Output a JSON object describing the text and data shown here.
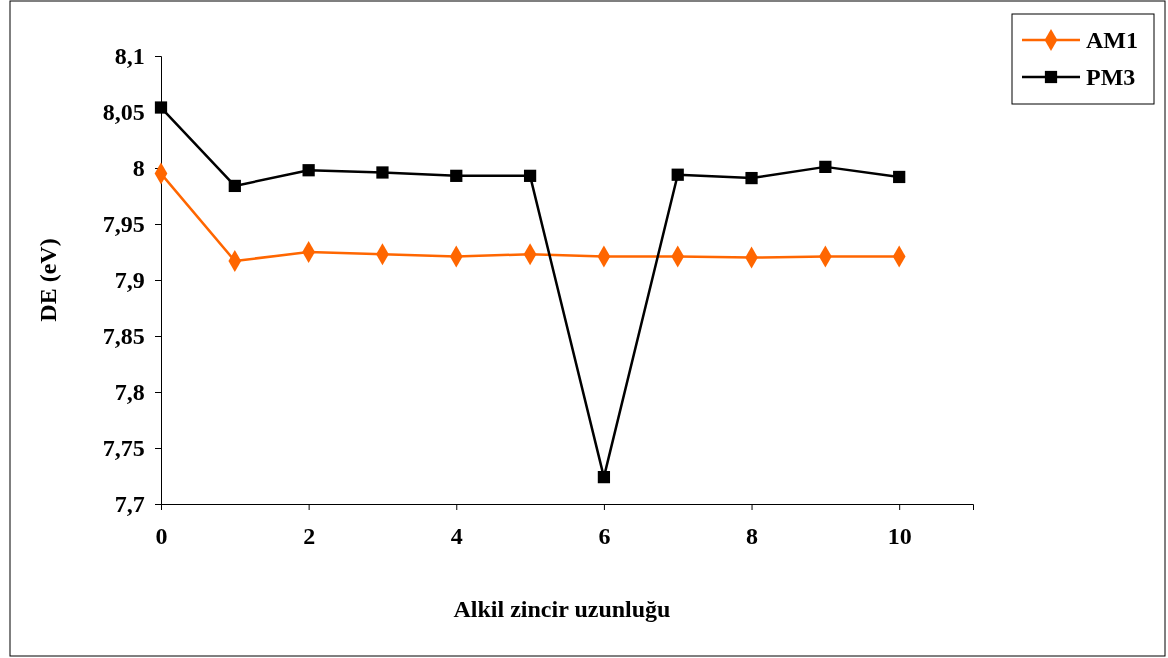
{
  "chart_data": {
    "type": "line",
    "xlabel": "Alkil zincir uzunluğu",
    "ylabel": "DE (eV)",
    "x": [
      0,
      1,
      2,
      3,
      4,
      5,
      6,
      7,
      8,
      9,
      10
    ],
    "xlim": [
      0,
      11
    ],
    "xticks": [
      0,
      2,
      4,
      6,
      8,
      10
    ],
    "ylim": [
      7.7,
      8.1
    ],
    "yticks": [
      {
        "value": 7.7,
        "label": "7,7"
      },
      {
        "value": 7.75,
        "label": "7,75"
      },
      {
        "value": 7.8,
        "label": "7,8"
      },
      {
        "value": 7.85,
        "label": "7,85"
      },
      {
        "value": 7.9,
        "label": "7,9"
      },
      {
        "value": 7.95,
        "label": "7,95"
      },
      {
        "value": 8,
        "label": "8"
      },
      {
        "value": 8.05,
        "label": "8,05"
      },
      {
        "value": 8.1,
        "label": "8,1"
      }
    ],
    "grid": false,
    "legend": "top right",
    "line_style": "solid",
    "series": [
      {
        "name": "AM1",
        "color": "#ff6600",
        "marker": "diamond",
        "values": [
          7.995,
          7.917,
          7.925,
          7.923,
          7.921,
          7.923,
          7.921,
          7.921,
          7.92,
          7.921,
          7.921
        ]
      },
      {
        "name": "PM3",
        "color": "#000000",
        "marker": "square",
        "values": [
          8.054,
          7.984,
          7.998,
          7.996,
          7.993,
          7.993,
          7.724,
          7.994,
          7.991,
          8.001,
          7.992
        ]
      }
    ]
  }
}
